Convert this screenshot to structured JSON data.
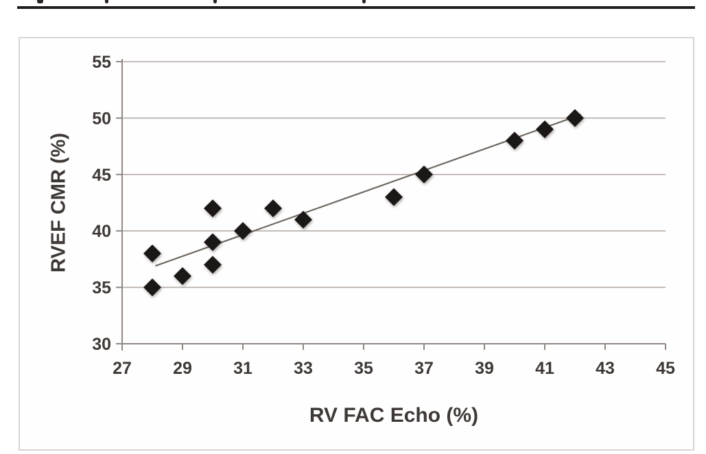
{
  "page": {
    "top_rule_color": "#211d1e"
  },
  "chart_data": {
    "type": "scatter",
    "title": "",
    "xlabel": "RV FAC Echo (%)",
    "ylabel": "RVEF CMR (%)",
    "xlim": [
      27,
      45
    ],
    "ylim": [
      30,
      55
    ],
    "x_ticks": [
      27,
      29,
      31,
      33,
      35,
      37,
      39,
      41,
      43,
      45
    ],
    "y_ticks": [
      30,
      35,
      40,
      45,
      50,
      55
    ],
    "grid": "horizontal-gridlines-only",
    "legend": "none",
    "marker": "diamond",
    "points": [
      {
        "x": 28,
        "y": 35
      },
      {
        "x": 28,
        "y": 38
      },
      {
        "x": 29,
        "y": 36
      },
      {
        "x": 30,
        "y": 37
      },
      {
        "x": 30,
        "y": 39
      },
      {
        "x": 30,
        "y": 42
      },
      {
        "x": 31,
        "y": 40
      },
      {
        "x": 32,
        "y": 42
      },
      {
        "x": 33,
        "y": 41
      },
      {
        "x": 36,
        "y": 43
      },
      {
        "x": 37,
        "y": 45
      },
      {
        "x": 40,
        "y": 48
      },
      {
        "x": 41,
        "y": 49
      },
      {
        "x": 42,
        "y": 50
      }
    ],
    "trendline": {
      "x1": 28.1,
      "y1": 36.9,
      "x2": 42.2,
      "y2": 50.3
    },
    "colors": {
      "marker": "#1c1717",
      "gridline": "#b3aba6",
      "axis": "#8f8781",
      "tick_label": "#3e3936",
      "trendline": "#6e6862",
      "frame_border": "#d9d4cf"
    }
  }
}
